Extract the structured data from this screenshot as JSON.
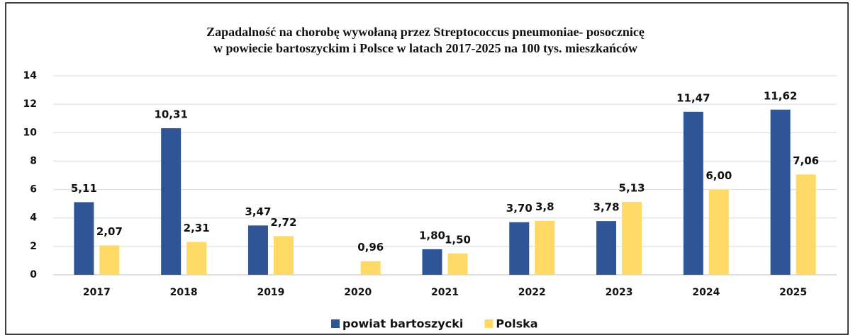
{
  "chart_data": {
    "type": "bar",
    "title": [
      "Zapadalność na chorobę wywołaną przez Streptococcus pneumoniae- posocznicę",
      "w powiecie bartoszyckim i Polsce w latach 2017-2025 na 100 tys. mieszkańców"
    ],
    "categories": [
      "2017",
      "2018",
      "2019",
      "2020",
      "2021",
      "2022",
      "2023",
      "2024",
      "2025"
    ],
    "series": [
      {
        "name": "powiat bartoszycki",
        "color": "#2f5597",
        "values": [
          5.11,
          10.31,
          3.47,
          null,
          1.8,
          3.7,
          3.78,
          11.47,
          11.62
        ],
        "value_labels": [
          "5,11",
          "10,31",
          "3,47",
          null,
          "1,80",
          "3,70",
          "3,78",
          "11,47",
          "11,62"
        ]
      },
      {
        "name": "Polska",
        "color": "#ffd966",
        "values": [
          2.07,
          2.31,
          2.72,
          0.96,
          1.5,
          3.8,
          5.13,
          6.0,
          7.06
        ],
        "value_labels": [
          "2,07",
          "2,31",
          "2,72",
          "0,96",
          "1,50",
          "3,8",
          "5,13",
          "6,00",
          "7,06"
        ]
      }
    ],
    "ylim": [
      0,
      14
    ],
    "yticks": [
      0,
      2,
      4,
      6,
      8,
      10,
      12,
      14
    ],
    "grid": true,
    "legend": "bottom"
  }
}
